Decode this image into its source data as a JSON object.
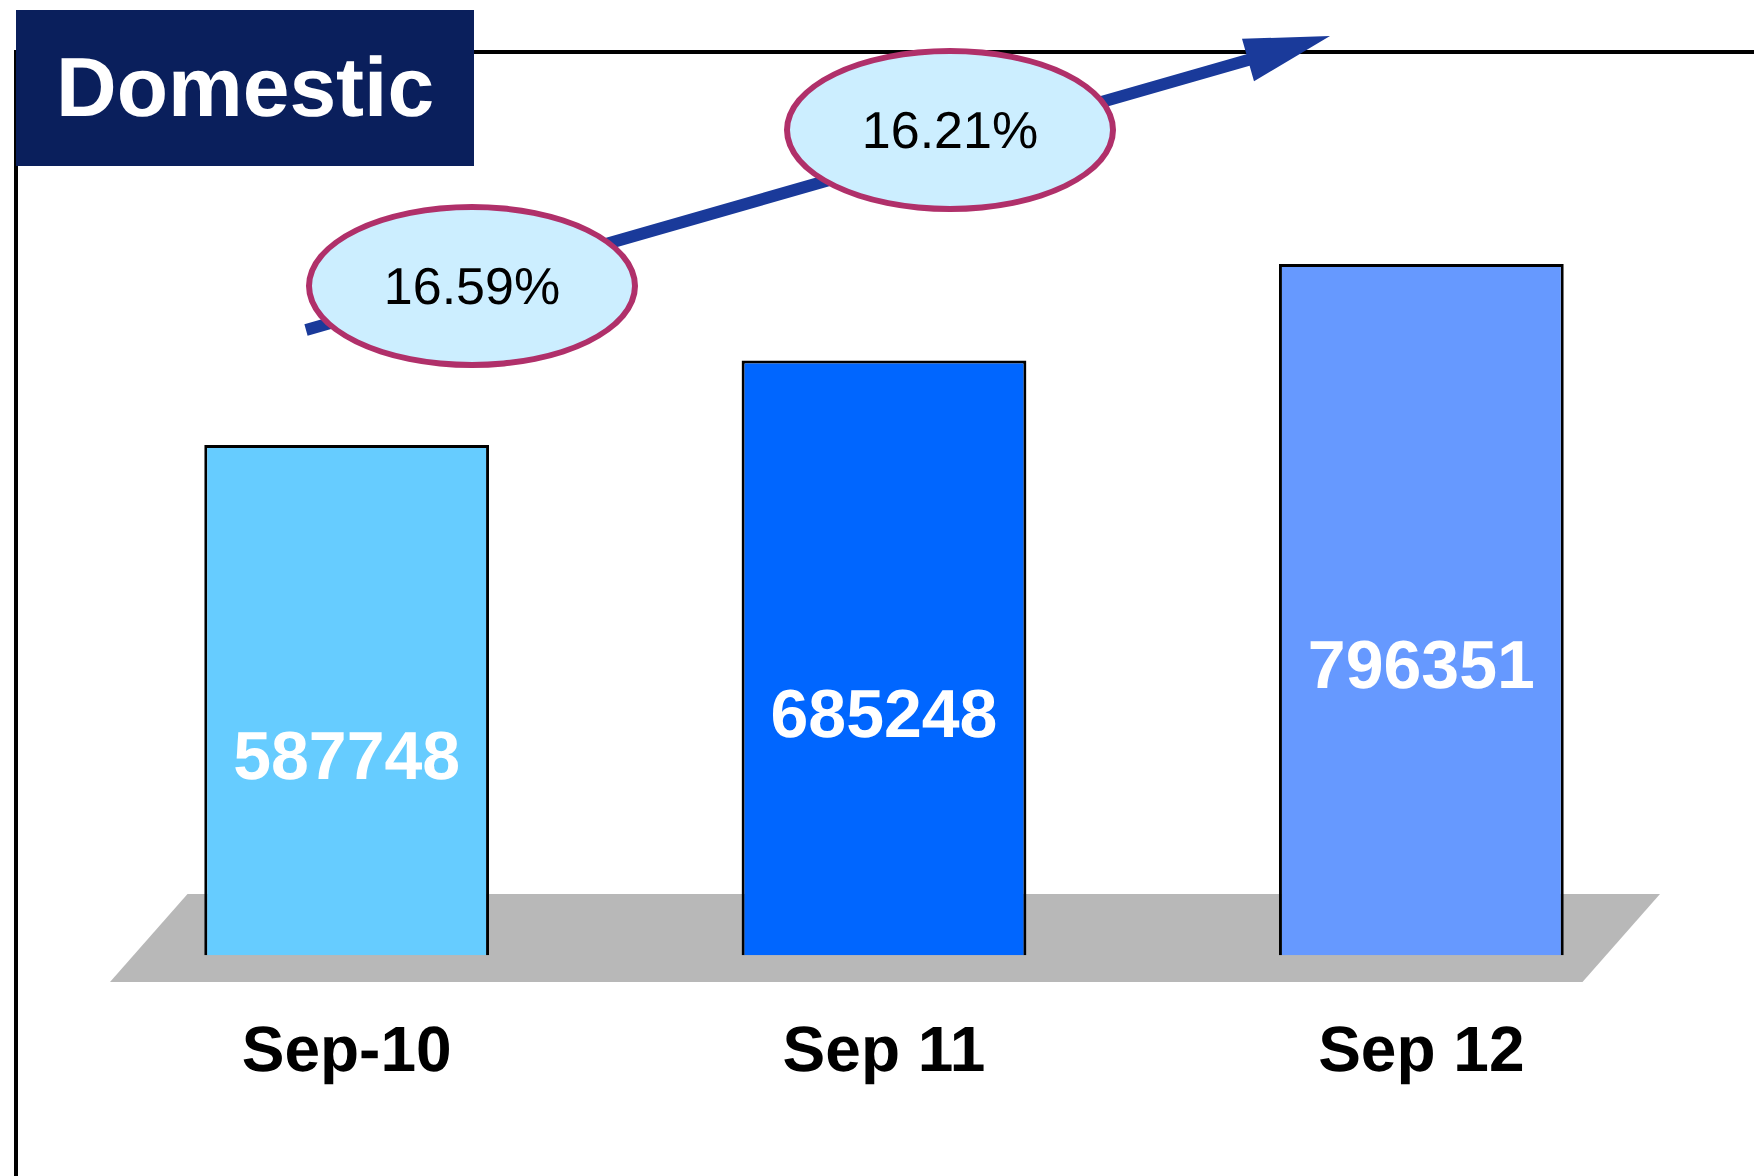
{
  "chart_data": {
    "type": "bar",
    "title": "Domestic",
    "categories": [
      "Sep-10",
      "Sep 11",
      "Sep 12"
    ],
    "values": [
      587748,
      685248,
      796351
    ],
    "colors": [
      "#66ccff",
      "#0066ff",
      "#6699ff"
    ],
    "data_labels": true,
    "legend": false,
    "grid": false,
    "annotations": [
      "16.59%",
      "16.21%"
    ]
  }
}
